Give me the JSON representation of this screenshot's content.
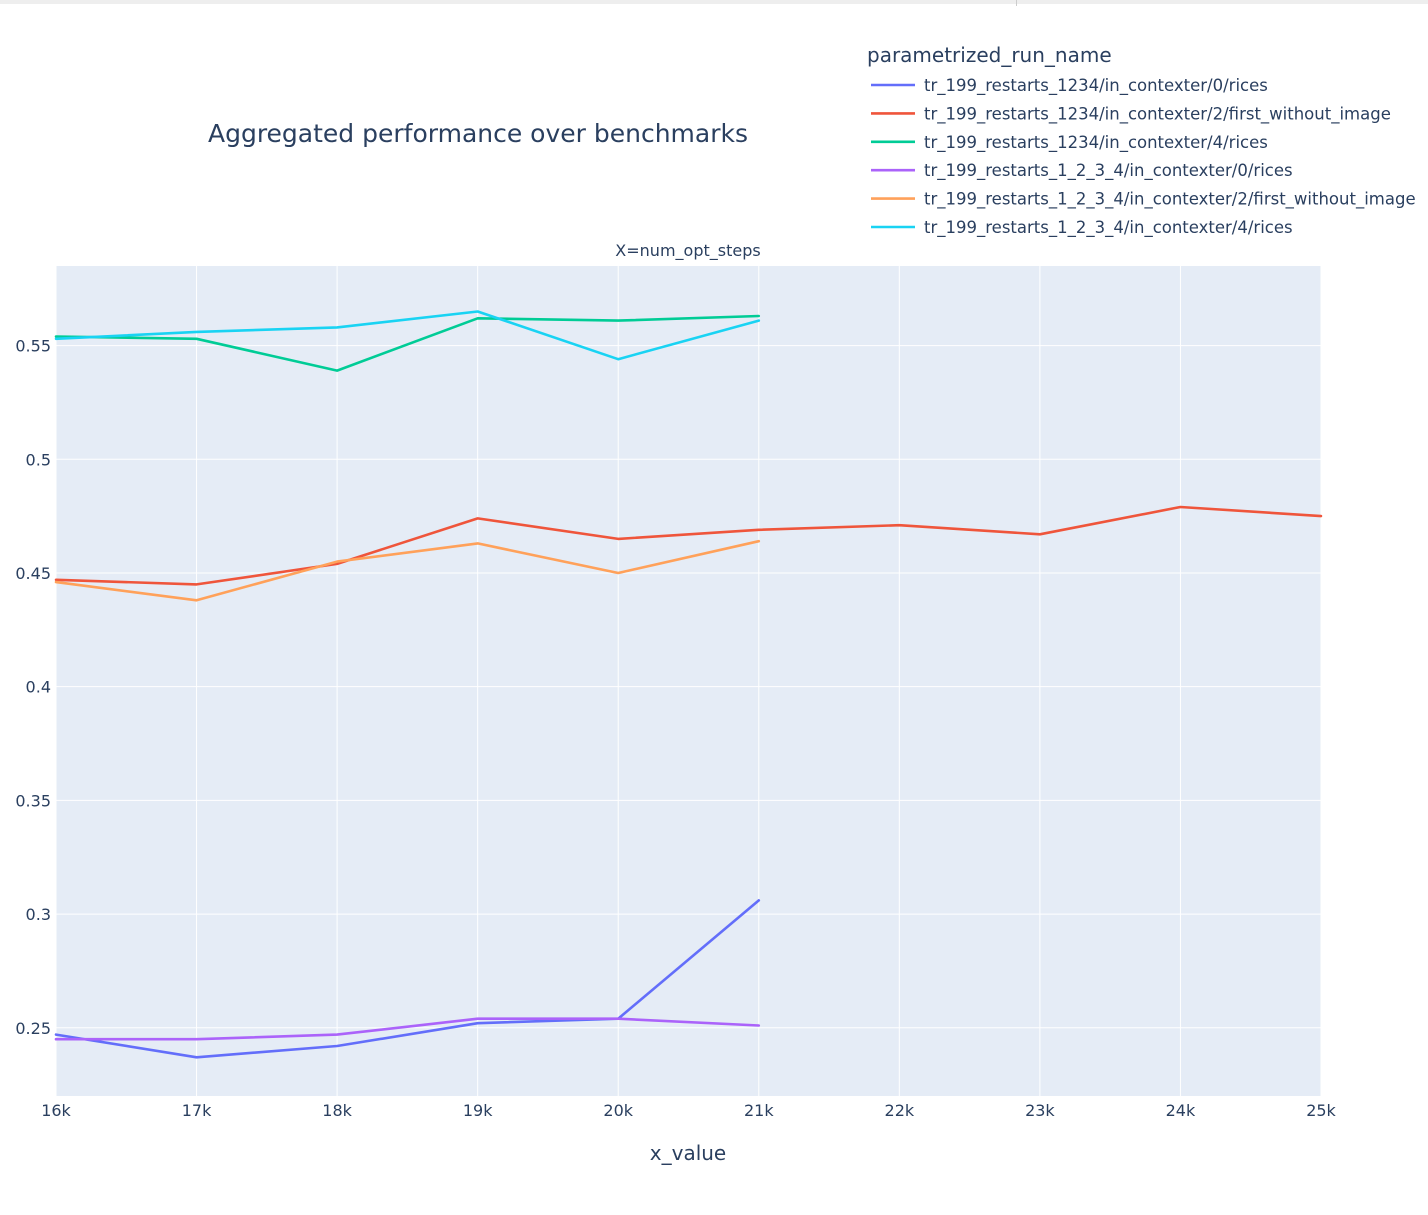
{
  "chart_data": {
    "type": "line",
    "title": "Aggregated performance over benchmarks",
    "subtitle": "X=num_opt_steps",
    "xlabel": "x_value",
    "ylabel": "",
    "legend_title": "parametrized_run_name",
    "legend_position": "top-right",
    "plot_background": "#e5ecf6",
    "grid": true,
    "xlim": [
      16000,
      25000
    ],
    "ylim": [
      0.22,
      0.585
    ],
    "x_ticks": [
      {
        "value": 16000,
        "label": "16k"
      },
      {
        "value": 17000,
        "label": "17k"
      },
      {
        "value": 18000,
        "label": "18k"
      },
      {
        "value": 19000,
        "label": "19k"
      },
      {
        "value": 20000,
        "label": "20k"
      },
      {
        "value": 21000,
        "label": "21k"
      },
      {
        "value": 22000,
        "label": "22k"
      },
      {
        "value": 23000,
        "label": "23k"
      },
      {
        "value": 24000,
        "label": "24k"
      },
      {
        "value": 25000,
        "label": "25k"
      }
    ],
    "y_ticks": [
      {
        "value": 0.25,
        "label": "0.25"
      },
      {
        "value": 0.3,
        "label": "0.3"
      },
      {
        "value": 0.35,
        "label": "0.35"
      },
      {
        "value": 0.4,
        "label": "0.4"
      },
      {
        "value": 0.45,
        "label": "0.45"
      },
      {
        "value": 0.5,
        "label": "0.5"
      },
      {
        "value": 0.55,
        "label": "0.55"
      }
    ],
    "series": [
      {
        "name": "tr_199_restarts_1234/in_contexter/0/rices",
        "color": "#636efa",
        "x": [
          16000,
          17000,
          18000,
          19000,
          20000,
          21000
        ],
        "y": [
          0.247,
          0.237,
          0.242,
          0.252,
          0.254,
          0.306
        ]
      },
      {
        "name": "tr_199_restarts_1234/in_contexter/2/first_without_image",
        "color": "#EF553B",
        "x": [
          16000,
          17000,
          18000,
          19000,
          20000,
          21000,
          22000,
          23000,
          24000,
          25000
        ],
        "y": [
          0.447,
          0.445,
          0.454,
          0.474,
          0.465,
          0.469,
          0.471,
          0.467,
          0.479,
          0.475
        ]
      },
      {
        "name": "tr_199_restarts_1234/in_contexter/4/rices",
        "color": "#00cc96",
        "x": [
          16000,
          17000,
          18000,
          19000,
          20000,
          21000
        ],
        "y": [
          0.554,
          0.553,
          0.539,
          0.562,
          0.561,
          0.563
        ]
      },
      {
        "name": "tr_199_restarts_1_2_3_4/in_contexter/0/rices",
        "color": "#ab63fa",
        "x": [
          16000,
          17000,
          18000,
          19000,
          20000,
          21000
        ],
        "y": [
          0.245,
          0.245,
          0.247,
          0.254,
          0.254,
          0.251
        ]
      },
      {
        "name": "tr_199_restarts_1_2_3_4/in_contexter/2/first_without_image",
        "color": "#FFA15A",
        "x": [
          16000,
          17000,
          18000,
          19000,
          20000,
          21000
        ],
        "y": [
          0.446,
          0.438,
          0.455,
          0.463,
          0.45,
          0.464
        ]
      },
      {
        "name": "tr_199_restarts_1_2_3_4/in_contexter/4/rices",
        "color": "#19d3f3",
        "x": [
          16000,
          17000,
          18000,
          19000,
          20000,
          21000
        ],
        "y": [
          0.553,
          0.556,
          0.558,
          0.565,
          0.544,
          0.561
        ]
      }
    ]
  }
}
